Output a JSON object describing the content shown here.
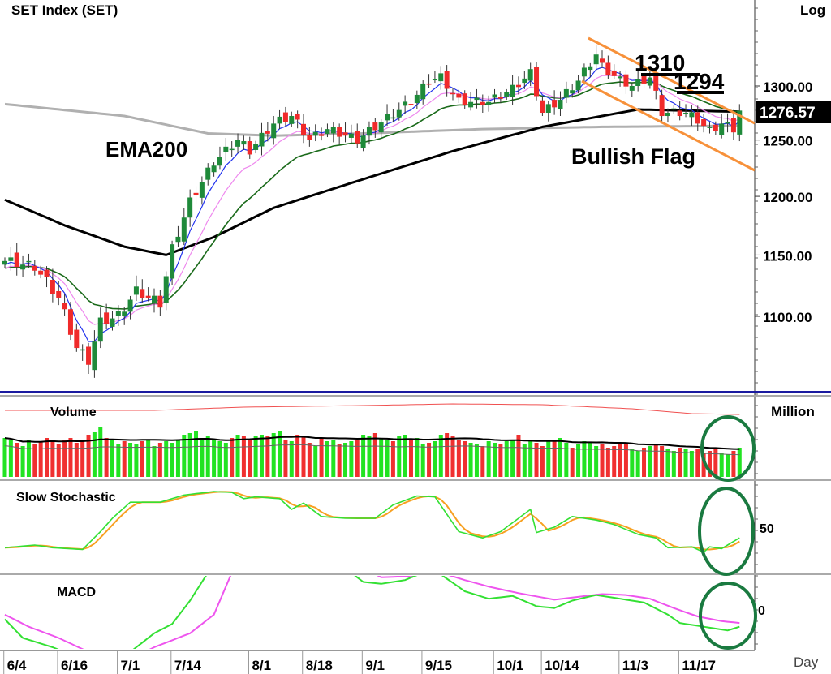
{
  "chart_data": {
    "type": "candlestick",
    "title": "SET  Index  (SET)",
    "scale_label": "Log",
    "x_ticks": [
      "6/4",
      "6/16",
      "7/1",
      "7/14",
      "8/1",
      "8/18",
      "9/1",
      "9/15",
      "10/1",
      "10/14",
      "11/3",
      "11/17"
    ],
    "x_tick_days": [
      2,
      11,
      21,
      30,
      43,
      52,
      62,
      72,
      84,
      92,
      105,
      115
    ],
    "x_axis_label": "Day",
    "y_ticks": [
      1100,
      1150,
      1200,
      1250,
      1300
    ],
    "y_tick_labels": [
      "1100.00",
      "1150.00",
      "1200.00",
      "1250.00",
      "1300.00"
    ],
    "last_price_label": "1276.57",
    "last_price": 1276.57,
    "num_days": 124,
    "close_keypoints": [
      [
        0,
        1145
      ],
      [
        5,
        1140
      ],
      [
        9,
        1115
      ],
      [
        12,
        1075
      ],
      [
        14,
        1065
      ],
      [
        16,
        1095
      ],
      [
        19,
        1100
      ],
      [
        22,
        1120
      ],
      [
        26,
        1110
      ],
      [
        28,
        1155
      ],
      [
        31,
        1195
      ],
      [
        35,
        1230
      ],
      [
        39,
        1250
      ],
      [
        41,
        1240
      ],
      [
        45,
        1265
      ],
      [
        48,
        1272
      ],
      [
        51,
        1250
      ],
      [
        54,
        1260
      ],
      [
        59,
        1250
      ],
      [
        64,
        1270
      ],
      [
        68,
        1285
      ],
      [
        71,
        1305
      ],
      [
        73,
        1308
      ],
      [
        76,
        1285
      ],
      [
        81,
        1285
      ],
      [
        85,
        1297
      ],
      [
        88,
        1312
      ],
      [
        90,
        1275
      ],
      [
        93,
        1287
      ],
      [
        96,
        1305
      ],
      [
        99,
        1330
      ],
      [
        100,
        1318
      ],
      [
        103,
        1305
      ],
      [
        105,
        1300
      ],
      [
        108,
        1308
      ],
      [
        110,
        1275
      ],
      [
        114,
        1275
      ],
      [
        116,
        1268
      ],
      [
        118,
        1258
      ],
      [
        120,
        1265
      ],
      [
        122,
        1260
      ],
      [
        123,
        1277
      ]
    ],
    "ema200_keypoints": [
      [
        0,
        1283
      ],
      [
        20,
        1272
      ],
      [
        34,
        1256
      ],
      [
        45,
        1254
      ],
      [
        60,
        1256
      ],
      [
        80,
        1260
      ],
      [
        100,
        1262
      ],
      [
        123,
        1263
      ]
    ],
    "ema50_keypoints": [
      [
        0,
        1197
      ],
      [
        10,
        1175
      ],
      [
        20,
        1157
      ],
      [
        27,
        1150
      ],
      [
        35,
        1165
      ],
      [
        45,
        1190
      ],
      [
        60,
        1215
      ],
      [
        75,
        1240
      ],
      [
        90,
        1262
      ],
      [
        100,
        1272
      ],
      [
        106,
        1278
      ],
      [
        123,
        1276
      ]
    ],
    "annotations": {
      "ema200_label": "EMA200",
      "resistance_1": "1310",
      "resistance_2": "1294",
      "pattern_label": "Bullish Flag"
    },
    "volume": {
      "title": "Volume",
      "unit_label": "Million",
      "values": [
        48,
        46,
        42,
        38,
        45,
        40,
        44,
        48,
        46,
        40,
        45,
        48,
        42,
        44,
        52,
        55,
        62,
        48,
        46,
        40,
        44,
        42,
        40,
        44,
        46,
        38,
        42,
        44,
        42,
        46,
        52,
        54,
        56,
        48,
        50,
        46,
        44,
        42,
        48,
        52,
        50,
        46,
        50,
        52,
        50,
        54,
        56,
        46,
        44,
        52,
        50,
        42,
        38,
        48,
        44,
        46,
        40,
        42,
        44,
        46,
        52,
        50,
        54,
        48,
        46,
        44,
        50,
        52,
        46,
        48,
        40,
        42,
        44,
        52,
        54,
        50,
        46,
        44,
        42,
        40,
        38,
        44,
        42,
        40,
        44,
        46,
        52,
        40,
        44,
        42,
        38,
        44,
        46,
        48,
        42,
        36,
        40,
        44,
        42,
        38,
        40,
        36,
        38,
        40,
        42,
        34,
        32,
        36,
        38,
        40,
        38,
        34,
        32,
        36,
        34,
        32,
        34,
        30,
        32,
        34,
        30,
        28,
        32,
        36
      ],
      "avg_line_keypoints": [
        [
          0,
          82
        ],
        [
          25,
          82
        ],
        [
          40,
          86
        ],
        [
          60,
          88
        ],
        [
          75,
          90
        ],
        [
          90,
          89
        ],
        [
          105,
          84
        ],
        [
          115,
          78
        ],
        [
          123,
          77
        ]
      ]
    },
    "stochastic": {
      "title": "Slow  Stochastic",
      "y_tick": "50",
      "k_keypoints": [
        [
          0,
          27
        ],
        [
          5,
          30
        ],
        [
          8,
          27
        ],
        [
          13,
          25
        ],
        [
          16,
          45
        ],
        [
          18,
          60
        ],
        [
          21,
          78
        ],
        [
          26,
          78
        ],
        [
          30,
          86
        ],
        [
          35,
          90
        ],
        [
          38,
          89
        ],
        [
          40,
          82
        ],
        [
          42,
          84
        ],
        [
          46,
          82
        ],
        [
          48,
          70
        ],
        [
          50,
          77
        ],
        [
          53,
          62
        ],
        [
          57,
          60
        ],
        [
          62,
          60
        ],
        [
          65,
          75
        ],
        [
          69,
          85
        ],
        [
          72,
          84
        ],
        [
          76,
          45
        ],
        [
          80,
          38
        ],
        [
          83,
          45
        ],
        [
          86,
          60
        ],
        [
          88,
          70
        ],
        [
          89,
          44
        ],
        [
          92,
          50
        ],
        [
          95,
          62
        ],
        [
          99,
          58
        ],
        [
          102,
          53
        ],
        [
          106,
          42
        ],
        [
          109,
          38
        ],
        [
          111,
          27
        ],
        [
          115,
          28
        ],
        [
          117,
          22
        ],
        [
          118,
          28
        ],
        [
          120,
          26
        ],
        [
          123,
          38
        ]
      ]
    },
    "macd": {
      "title": "MACD",
      "y_tick": "0",
      "macd_keypoints": [
        [
          0,
          -10
        ],
        [
          3,
          -30
        ],
        [
          8,
          -40
        ],
        [
          12,
          -50
        ],
        [
          14,
          -60
        ],
        [
          18,
          -58
        ],
        [
          21,
          -45
        ],
        [
          25,
          -25
        ],
        [
          28,
          -15
        ],
        [
          31,
          10
        ],
        [
          34,
          40
        ],
        [
          40,
          90
        ],
        [
          48,
          110
        ],
        [
          54,
          70
        ],
        [
          57,
          45
        ],
        [
          60,
          30
        ],
        [
          63,
          28
        ],
        [
          67,
          32
        ],
        [
          70,
          40
        ],
        [
          73,
          38
        ],
        [
          77,
          20
        ],
        [
          81,
          12
        ],
        [
          85,
          15
        ],
        [
          89,
          4
        ],
        [
          92,
          2
        ],
        [
          95,
          10
        ],
        [
          99,
          16
        ],
        [
          103,
          12
        ],
        [
          107,
          8
        ],
        [
          111,
          -5
        ],
        [
          113,
          -14
        ],
        [
          117,
          -18
        ],
        [
          121,
          -22
        ],
        [
          123,
          -18
        ]
      ],
      "signal_keypoints": [
        [
          0,
          -5
        ],
        [
          4,
          -18
        ],
        [
          9,
          -30
        ],
        [
          14,
          -45
        ],
        [
          17,
          -55
        ],
        [
          21,
          -53
        ],
        [
          25,
          -40
        ],
        [
          31,
          -25
        ],
        [
          35,
          -5
        ],
        [
          38,
          40
        ],
        [
          42,
          90
        ],
        [
          50,
          110
        ],
        [
          57,
          50
        ],
        [
          60,
          45
        ],
        [
          63,
          35
        ],
        [
          67,
          36
        ],
        [
          73,
          40
        ],
        [
          77,
          32
        ],
        [
          81,
          25
        ],
        [
          86,
          18
        ],
        [
          92,
          11
        ],
        [
          96,
          14
        ],
        [
          100,
          17
        ],
        [
          104,
          16
        ],
        [
          108,
          12
        ],
        [
          112,
          2
        ],
        [
          116,
          -7
        ],
        [
          120,
          -12
        ],
        [
          123,
          -14
        ]
      ]
    },
    "colors": {
      "up": "#1f8a3a",
      "down": "#f02a2a",
      "ema200": "#b0b0b0",
      "ema50": "#000000",
      "channel": "#f7913a",
      "vol_up": "#22e322",
      "vol_down": "#f03030",
      "stoch_k": "#33e033",
      "stoch_d": "#f7a020",
      "macd": "#33e033",
      "signal": "#ee55ee",
      "highlight": "#1a7a40"
    }
  }
}
